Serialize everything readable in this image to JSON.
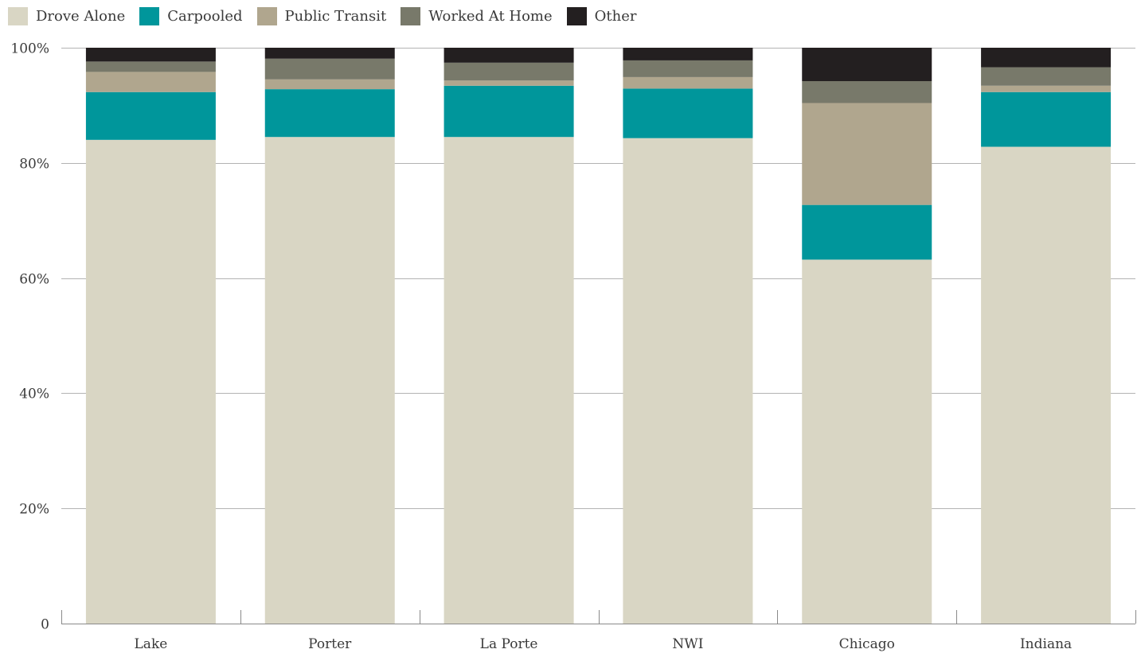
{
  "chart_data": {
    "type": "bar",
    "stacked": true,
    "title": "",
    "xlabel": "",
    "ylabel": "",
    "categories": [
      "Lake",
      "Porter",
      "La Porte",
      "NWI",
      "Chicago",
      "Indiana"
    ],
    "ylim": [
      0,
      100
    ],
    "yticks": [
      0,
      20,
      40,
      60,
      80,
      100
    ],
    "ytick_labels": [
      "0",
      "20%",
      "40%",
      "60%",
      "80%",
      "100%"
    ],
    "grid": true,
    "legend_position": "top-left",
    "series": [
      {
        "name": "Drove Alone",
        "color": "#d9d6c4",
        "values": [
          84.0,
          84.5,
          84.5,
          84.3,
          63.2,
          82.8
        ]
      },
      {
        "name": "Carpooled",
        "color": "#00969b",
        "values": [
          8.3,
          8.3,
          8.9,
          8.6,
          9.5,
          9.5
        ]
      },
      {
        "name": "Public Transit",
        "color": "#b0a68e",
        "values": [
          3.5,
          1.7,
          0.9,
          2.0,
          17.7,
          1.1
        ]
      },
      {
        "name": "Worked At Home",
        "color": "#78796a",
        "values": [
          1.8,
          3.6,
          3.1,
          2.9,
          3.8,
          3.2
        ]
      },
      {
        "name": "Other",
        "color": "#231f20",
        "values": [
          2.4,
          1.9,
          2.6,
          2.2,
          5.8,
          3.4
        ]
      }
    ]
  }
}
